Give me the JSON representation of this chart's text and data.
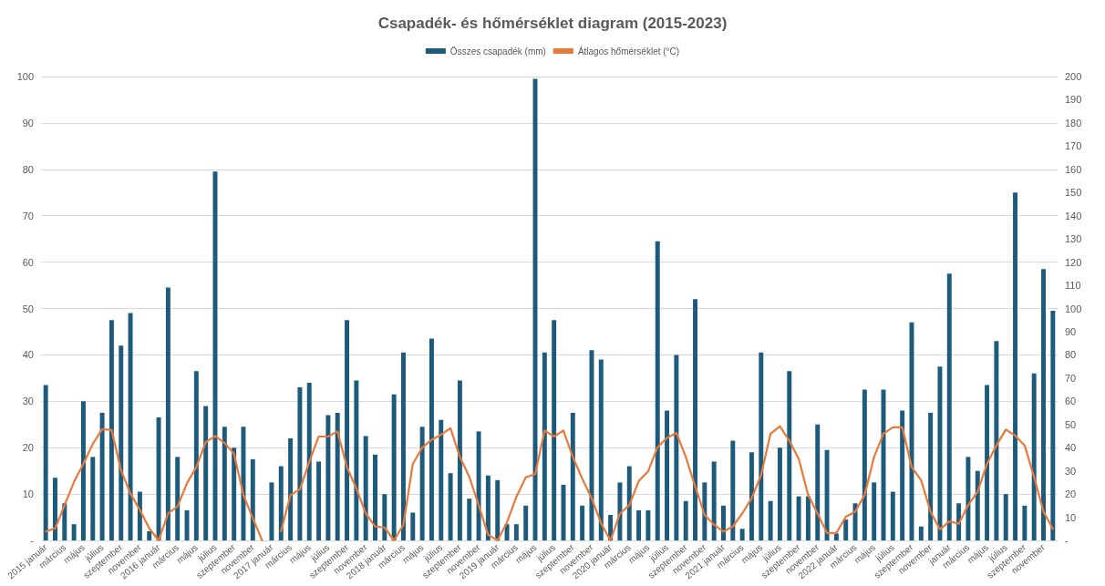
{
  "chart_data": {
    "type": "bar",
    "title": "Csapadék- és hőmérséklet diagram (2015-2023)",
    "categories": [
      "2015 január",
      null,
      "március",
      null,
      "május",
      null,
      "július",
      null,
      "szeptember",
      null,
      "november",
      null,
      "2016 január",
      null,
      "március",
      null,
      "május",
      null,
      "július",
      null,
      "szeptember",
      null,
      "november",
      null,
      "2017 január",
      null,
      "március",
      null,
      "május",
      null,
      "július",
      null,
      "szeptember",
      null,
      "november",
      null,
      "2018 január",
      null,
      "március",
      null,
      "május",
      null,
      "július",
      null,
      "szeptember",
      null,
      "november",
      null,
      "2019 január",
      null,
      "március",
      null,
      "május",
      null,
      "július",
      null,
      "szeptember",
      null,
      "november",
      null,
      "2020 január",
      null,
      "március",
      null,
      "május",
      null,
      "július",
      null,
      "szeptember",
      null,
      "november",
      null,
      "2021 január",
      null,
      "március",
      null,
      "május",
      null,
      "július",
      null,
      "szeptember",
      null,
      "november",
      null,
      "2022 január",
      null,
      "március",
      null,
      "május",
      null,
      "július",
      null,
      "szeptember",
      null,
      "november",
      null,
      "január",
      null,
      "március",
      null,
      "május",
      null,
      "július",
      null,
      "szeptember",
      null,
      "november",
      null
    ],
    "series": [
      {
        "name": "Összes csapadék (mm)",
        "axis": "y2",
        "color": "#1d5b7d",
        "values": [
          67,
          27,
          16,
          7,
          60,
          36,
          55,
          95,
          84,
          98,
          21,
          4,
          53,
          109,
          36,
          13,
          73,
          58,
          159,
          49,
          40,
          49,
          35,
          0,
          25,
          32,
          44,
          66,
          68,
          34,
          54,
          55,
          95,
          69,
          45,
          37,
          20,
          63,
          81,
          12,
          49,
          87,
          52,
          29,
          69,
          18,
          47,
          28,
          26,
          7,
          7,
          15,
          199,
          81,
          95,
          24,
          55,
          15,
          82,
          78,
          11,
          25,
          32,
          13,
          13,
          129,
          56,
          80,
          17,
          104,
          25,
          34,
          15,
          43,
          5,
          38,
          81,
          17,
          40,
          73,
          19,
          19,
          50,
          39,
          3,
          9,
          16,
          65,
          25,
          65,
          21,
          56,
          94,
          6,
          55,
          75,
          115,
          16,
          36,
          30,
          67,
          86,
          20,
          150,
          15,
          72,
          117,
          99
        ]
      },
      {
        "name": "Átlagos hőmérséklet (°C)",
        "type": "line",
        "color": "#e8793a",
        "values": [
          1.9,
          2.6,
          7.6,
          12.6,
          16.5,
          20.8,
          24,
          23.8,
          15.1,
          10.1,
          6.6,
          2.6,
          0,
          5.8,
          7.3,
          12.3,
          15.8,
          21.2,
          22.5,
          21,
          18.7,
          9.8,
          4.8,
          0,
          null,
          2,
          9.8,
          11,
          16.9,
          22.4,
          22.4,
          23.5,
          15.8,
          11.2,
          5.8,
          3,
          2.8,
          0,
          3.4,
          16.5,
          20,
          21.7,
          22.8,
          24.2,
          18,
          13.7,
          7.6,
          1.2,
          0,
          3.9,
          9.4,
          13.6,
          14.3,
          23.7,
          22.4,
          23.7,
          18,
          13.3,
          9.1,
          3.7,
          0,
          5.8,
          7.6,
          12.8,
          14.9,
          20.1,
          22.1,
          23.2,
          18,
          11.6,
          5.5,
          3.4,
          1.9,
          3,
          5.8,
          9.1,
          14.1,
          23,
          24.6,
          21.5,
          17.6,
          9.8,
          5.8,
          1.6,
          1.6,
          5.1,
          6.2,
          9.8,
          18,
          23,
          24.4,
          24.4,
          15.8,
          13,
          6.2,
          2.4,
          4.1,
          3.6,
          7.6,
          10.5,
          16.5,
          20.5,
          23.9,
          22.6,
          20.5,
          13.7,
          6.2,
          2.5
        ]
      }
    ],
    "ylim": [
      0,
      100
    ],
    "yticks": [
      {
        "value": 0,
        "label": "-"
      },
      10,
      20,
      30,
      40,
      50,
      60,
      70,
      80,
      90,
      100
    ],
    "y2lim": [
      0,
      200
    ],
    "y2ticks": [
      {
        "value": 0,
        "label": "-"
      },
      10,
      20,
      30,
      40,
      50,
      60,
      70,
      80,
      90,
      100,
      110,
      120,
      130,
      140,
      150,
      160,
      170,
      180,
      190,
      200
    ],
    "grid": "y",
    "legend": "top",
    "line_style": "solid"
  }
}
